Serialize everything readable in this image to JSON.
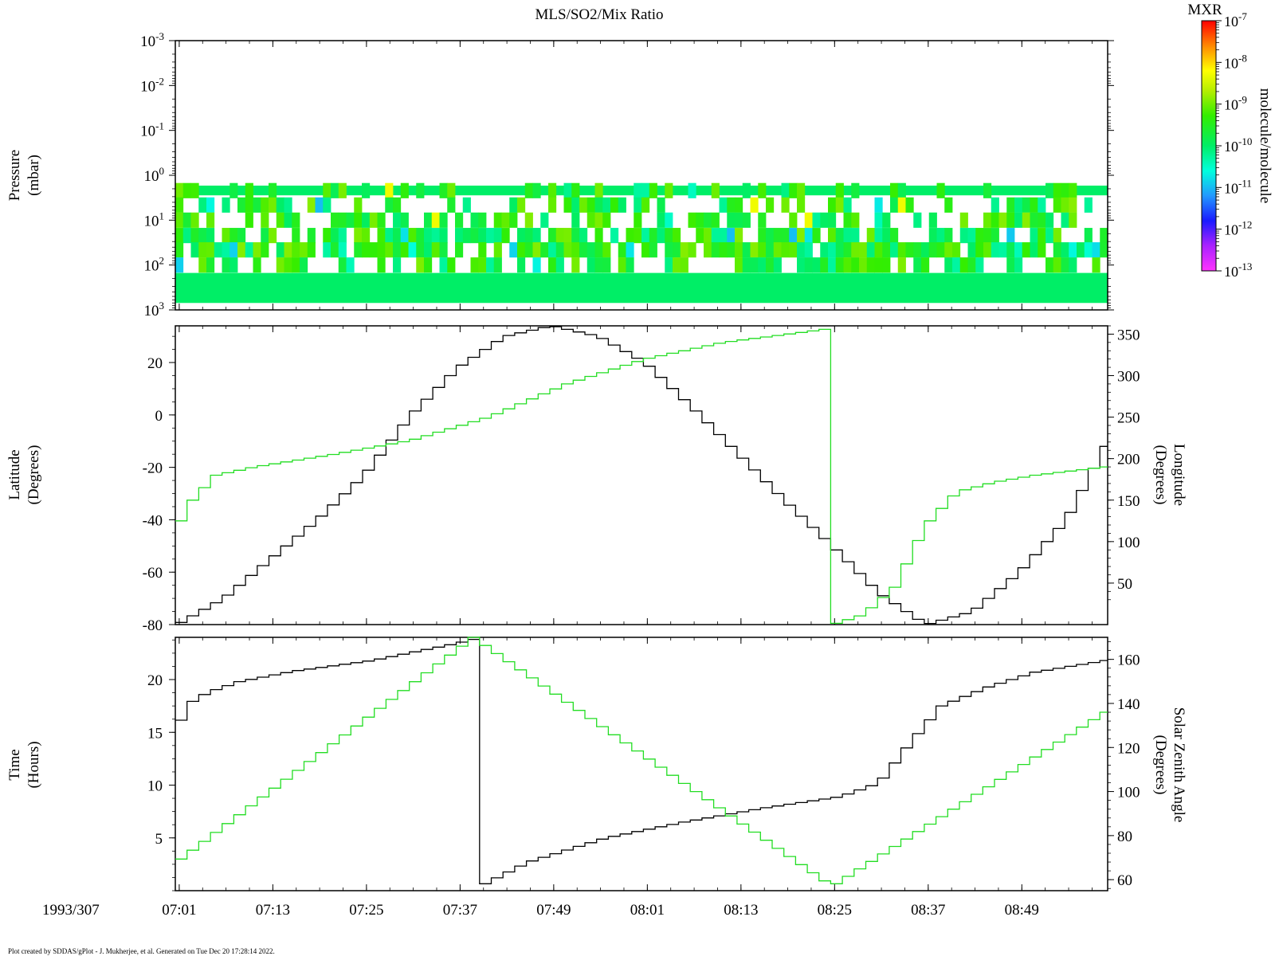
{
  "title": "MLS/SO2/Mix Ratio",
  "footer": "Plot created by SDDAS/gPlot - J. Mukherjee, et al.  Generated on Tue Dec 20 17:28:14 2022.",
  "date_label": "1993/307",
  "colors": {
    "black_line": "#000000",
    "green_line": "#22dd22"
  },
  "colorbar": {
    "title": "MXR",
    "unit_label": "molecule/molecule",
    "tick_exponents": [
      -7,
      -8,
      -9,
      -10,
      -11,
      -12,
      -13
    ]
  },
  "time_axis": {
    "tick_labels": [
      "07:01",
      "07:13",
      "07:25",
      "07:37",
      "07:49",
      "08:01",
      "08:13",
      "08:25",
      "08:37",
      "08:49"
    ]
  },
  "chart_data": [
    {
      "type": "heatmap",
      "ylabel": "Pressure",
      "yunit": "(mbar)",
      "yscale": "log",
      "y_tick_exponents": [
        -3,
        -2,
        -1,
        0,
        1,
        2,
        3
      ],
      "levels_mbar": [
        2.2,
        4.6,
        10,
        22,
        46,
        100
      ],
      "value_scale": "log10 mixing ratio",
      "value_range": [
        -13,
        -7
      ],
      "columns": 120,
      "note_bands": "uniform bands near 2 mbar and 150-700 mbar at about 1e-10"
    },
    {
      "type": "line",
      "ylabel": "Latitude",
      "yunit": "(Degrees)",
      "ylim": [
        -80,
        34
      ],
      "y_ticks": [
        20,
        0,
        -20,
        -40,
        -60,
        -80
      ],
      "y2label": "Longitude",
      "y2unit": "(Degrees)",
      "y2lim": [
        0,
        360
      ],
      "y2_ticks": [
        350,
        300,
        250,
        200,
        150,
        100,
        50
      ],
      "series": [
        {
          "name": "Latitude",
          "color": "#000000",
          "x": [
            "07:00",
            "07:06",
            "07:12",
            "07:18",
            "07:24",
            "07:30",
            "07:36",
            "07:42",
            "07:48",
            "07:54",
            "08:00",
            "08:06",
            "08:12",
            "08:18",
            "08:24",
            "08:30",
            "08:36",
            "08:42",
            "08:48",
            "08:54",
            "08:59"
          ],
          "y": [
            -80,
            -70,
            -55,
            -40,
            -23,
            0,
            18,
            30,
            34,
            30,
            20,
            3,
            -15,
            -33,
            -50,
            -68,
            -80,
            -75,
            -60,
            -40,
            -12
          ]
        },
        {
          "name": "Longitude",
          "color": "#22dd22",
          "x": [
            "07:00",
            "07:01",
            "07:05",
            "07:10",
            "07:20",
            "07:30",
            "07:40",
            "07:50",
            "08:00",
            "08:10",
            "08:20",
            "08:24",
            "08:24",
            "08:28",
            "08:32",
            "08:36",
            "08:40",
            "08:45",
            "08:50",
            "08:59"
          ],
          "y": [
            110,
            140,
            180,
            190,
            205,
            222,
            250,
            290,
            320,
            340,
            352,
            357,
            0,
            12,
            45,
            120,
            160,
            172,
            180,
            190
          ]
        }
      ]
    },
    {
      "type": "line",
      "ylabel": "Time",
      "yunit": "(Hours)",
      "ylim": [
        0,
        24
      ],
      "y_ticks": [
        20,
        15,
        10,
        5
      ],
      "y2label": "Solar Zenith Angle",
      "y2unit": "(Degrees)",
      "y2lim": [
        55,
        170
      ],
      "y2_ticks": [
        160,
        140,
        120,
        100,
        80,
        60
      ],
      "series": [
        {
          "name": "Time",
          "color": "#000000",
          "x": [
            "07:00",
            "07:01",
            "07:04",
            "07:08",
            "07:15",
            "07:25",
            "07:35",
            "07:38",
            "07:38",
            "07:45",
            "07:55",
            "08:05",
            "08:15",
            "08:25",
            "08:30",
            "08:34",
            "08:38",
            "08:44",
            "08:50",
            "08:59"
          ],
          "y": [
            14.8,
            17.5,
            18.8,
            19.8,
            20.8,
            21.8,
            23.3,
            23.8,
            0.1,
            2.7,
            5.0,
            6.5,
            7.8,
            8.9,
            10.2,
            14.0,
            17.5,
            19.3,
            20.7,
            21.8
          ]
        },
        {
          "name": "Solar Zenith Angle",
          "color": "#22dd22",
          "x": [
            "07:00",
            "07:38",
            "08:24",
            "08:59"
          ],
          "y": [
            68,
            170,
            57,
            136
          ]
        }
      ]
    }
  ]
}
